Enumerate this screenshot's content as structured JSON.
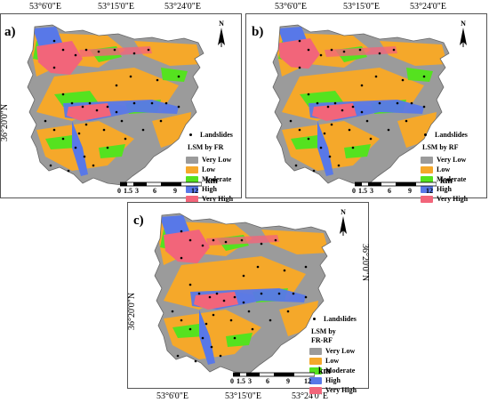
{
  "colors": {
    "very_low": "#9b9b9b",
    "low": "#f5a82a",
    "moderate": "#55e21f",
    "high": "#5878e8",
    "very_high": "#f2657a",
    "landslide": "#000000"
  },
  "coords": {
    "lon1": "53°6'0\"E",
    "lon2": "53°15'0\"E",
    "lon3": "53°24'0\"E",
    "lat": "36°20'0\"N"
  },
  "north_label": "N",
  "scale": {
    "unit": "km",
    "ticks": [
      "0",
      "1.5",
      "3",
      "6",
      "9",
      "12"
    ]
  },
  "legend": {
    "landslides": "Landslides",
    "classes": [
      "Very Low",
      "Low",
      "Moderate",
      "High",
      "Very High"
    ]
  },
  "panels": [
    {
      "label": "a)",
      "legend_title": [
        "LSM by FR"
      ]
    },
    {
      "label": "b)",
      "legend_title": [
        "LSM by RF"
      ]
    },
    {
      "label": "c)",
      "legend_title": [
        "LSM by",
        "FR-RF"
      ]
    }
  ]
}
